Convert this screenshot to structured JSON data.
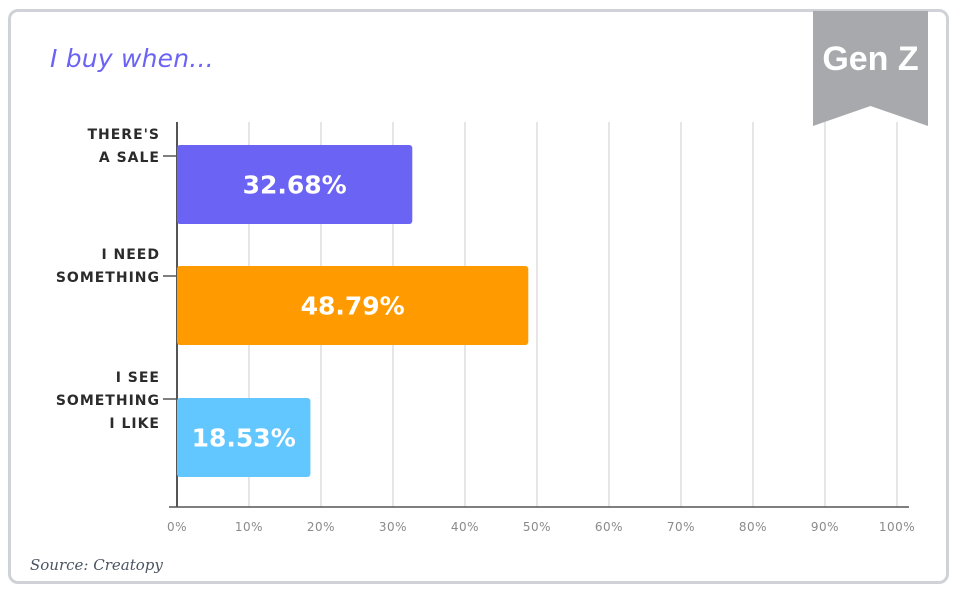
{
  "title": "I buy when...",
  "badge": "Gen Z",
  "source": "Source: Creatopy",
  "chart_data": {
    "type": "bar",
    "orientation": "horizontal",
    "categories": [
      [
        "THERE'S",
        "A SALE"
      ],
      [
        "I NEED",
        "SOMETHING"
      ],
      [
        "I SEE",
        "SOMETHING",
        "I LIKE"
      ]
    ],
    "values": [
      32.68,
      48.79,
      18.53
    ],
    "value_labels": [
      "32.68%",
      "48.79%",
      "18.53%"
    ],
    "colors": [
      "#6b63f4",
      "#ff9b00",
      "#63c7ff"
    ],
    "xlim": [
      0,
      100
    ],
    "xticks": [
      0,
      10,
      20,
      30,
      40,
      50,
      60,
      70,
      80,
      90,
      100
    ],
    "xtick_labels": [
      "0%",
      "10%",
      "20%",
      "30%",
      "40%",
      "50%",
      "60%",
      "70%",
      "80%",
      "90%",
      "100%"
    ],
    "grid": true,
    "badge_color": "#a7a9ac",
    "grid_color": "#dedede",
    "axis_color": "#555555",
    "tick_label_color": "#8a8a8a",
    "category_label_color": "#2b2b2b"
  }
}
